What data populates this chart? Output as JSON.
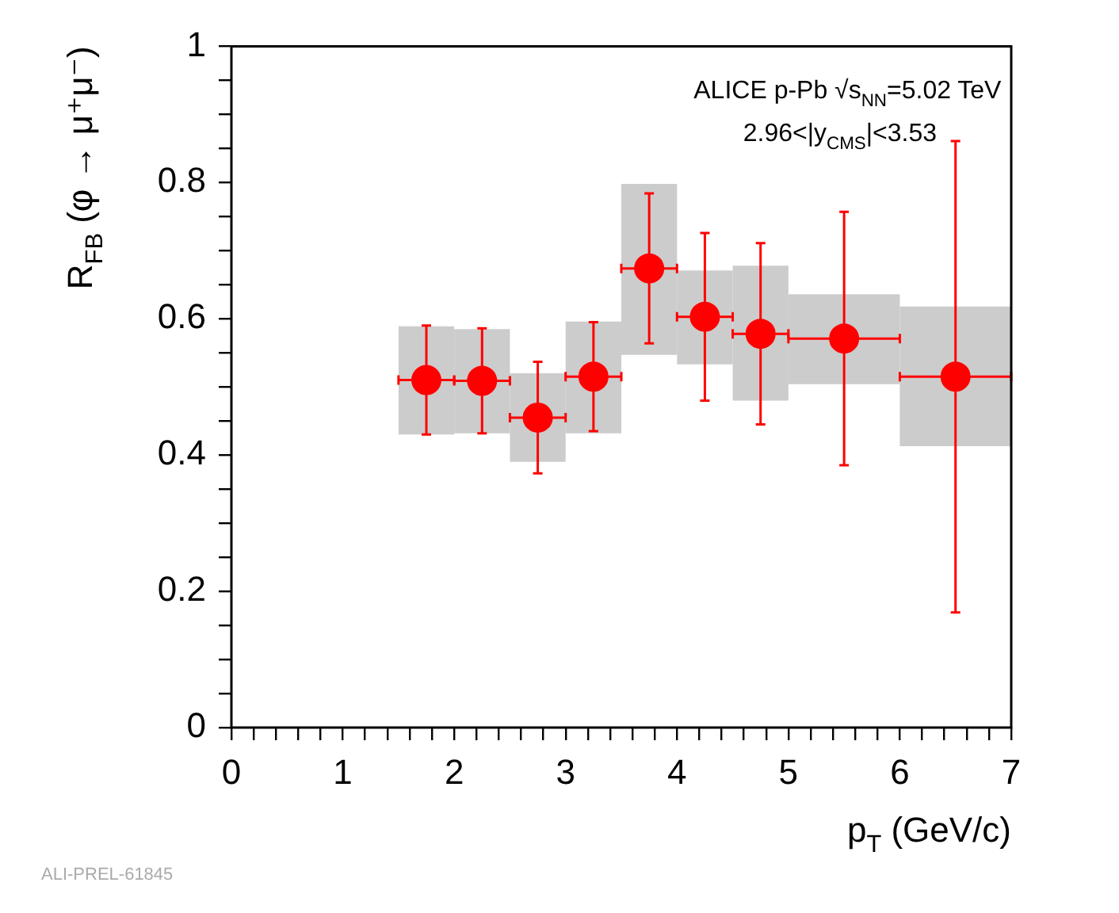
{
  "chart_data": {
    "type": "scatter",
    "xlabel": "p$_{T}$ (GeV/c)",
    "ylabel": "R$_{FB}$ (φ → μ⁺μ⁻)",
    "annotations": [
      "ALICE p-Pb √s$_{NN}$=5.02 TeV",
      "2.96<|y$_{CMS}$|<3.53",
      "ALI-PREL-61845"
    ],
    "xlim": [
      0,
      7
    ],
    "xticks": [
      0,
      {
        "value": 0.2,
        "label": null
      },
      {
        "value": 0.4,
        "label": null
      },
      {
        "value": 0.6,
        "label": null
      },
      {
        "value": 0.8,
        "label": null
      },
      1,
      {
        "value": 1.2,
        "label": null
      },
      {
        "value": 1.4,
        "label": null
      },
      {
        "value": 1.6,
        "label": null
      },
      {
        "value": 1.8,
        "label": null
      },
      2,
      {
        "value": 2.2,
        "label": null
      },
      {
        "value": 2.4,
        "label": null
      },
      {
        "value": 2.6,
        "label": null
      },
      {
        "value": 2.8,
        "label": null
      },
      3,
      {
        "value": 3.2,
        "label": null
      },
      {
        "value": 3.4,
        "label": null
      },
      {
        "value": 3.6,
        "label": null
      },
      {
        "value": 3.8,
        "label": null
      },
      4,
      {
        "value": 4.2,
        "label": null
      },
      {
        "value": 4.4,
        "label": null
      },
      {
        "value": 4.6,
        "label": null
      },
      {
        "value": 4.8,
        "label": null
      },
      5,
      {
        "value": 5.2,
        "label": null
      },
      {
        "value": 5.4,
        "label": null
      },
      {
        "value": 5.6,
        "label": null
      },
      {
        "value": 5.8,
        "label": null
      },
      6,
      {
        "value": 6.2,
        "label": null
      },
      {
        "value": 6.4,
        "label": null
      },
      {
        "value": 6.6,
        "label": null
      },
      {
        "value": 6.8,
        "label": null
      },
      7
    ],
    "ylim": [
      0,
      1
    ],
    "yticks": [
      0,
      {
        "value": 0.05,
        "label": null
      },
      {
        "value": 0.1,
        "label": null
      },
      {
        "value": 0.15,
        "label": null
      },
      0.2,
      {
        "value": 0.25,
        "label": null
      },
      {
        "value": 0.3,
        "label": null
      },
      {
        "value": 0.35,
        "label": null
      },
      0.4,
      {
        "value": 0.45,
        "label": null
      },
      {
        "value": 0.5,
        "label": null
      },
      {
        "value": 0.55,
        "label": null
      },
      0.6,
      {
        "value": 0.65,
        "label": null
      },
      {
        "value": 0.7,
        "label": null
      },
      {
        "value": 0.75,
        "label": null
      },
      0.8,
      {
        "value": 0.85,
        "label": null
      },
      {
        "value": 0.9,
        "label": null
      },
      {
        "value": 0.95,
        "label": null
      },
      1
    ],
    "marker": "circle",
    "series": [
      {
        "type": "bar",
        "color": "#cccccc",
        "x": [
          1.75,
          2.25,
          2.75,
          3.25,
          3.75,
          4.25,
          4.75,
          5.5,
          6.5
        ],
        "base": [
          0.43,
          0.432,
          0.39,
          0.432,
          0.547,
          0.533,
          0.48,
          0.504,
          0.413
        ],
        "values": [
          0.159,
          0.153,
          0.13,
          0.164,
          0.251,
          0.138,
          0.198,
          0.132,
          0.205
        ]
      },
      {
        "color": "#ff0000",
        "x": [
          1.75,
          2.25,
          2.75,
          3.25,
          3.75,
          4.25,
          4.75,
          5.5,
          6.5
        ],
        "values": [
          0.51,
          0.509,
          0.455,
          0.515,
          0.674,
          0.603,
          0.578,
          0.571,
          0.515
        ],
        "errors": [
          0.08,
          0.077,
          0.082,
          0.08,
          0.11,
          0.123,
          0.133,
          0.186,
          0.346
        ],
        "xerrors": [
          0.25,
          0.25,
          0.25,
          0.25,
          0.25,
          0.25,
          0.25,
          0.5,
          0.5
        ]
      }
    ]
  }
}
